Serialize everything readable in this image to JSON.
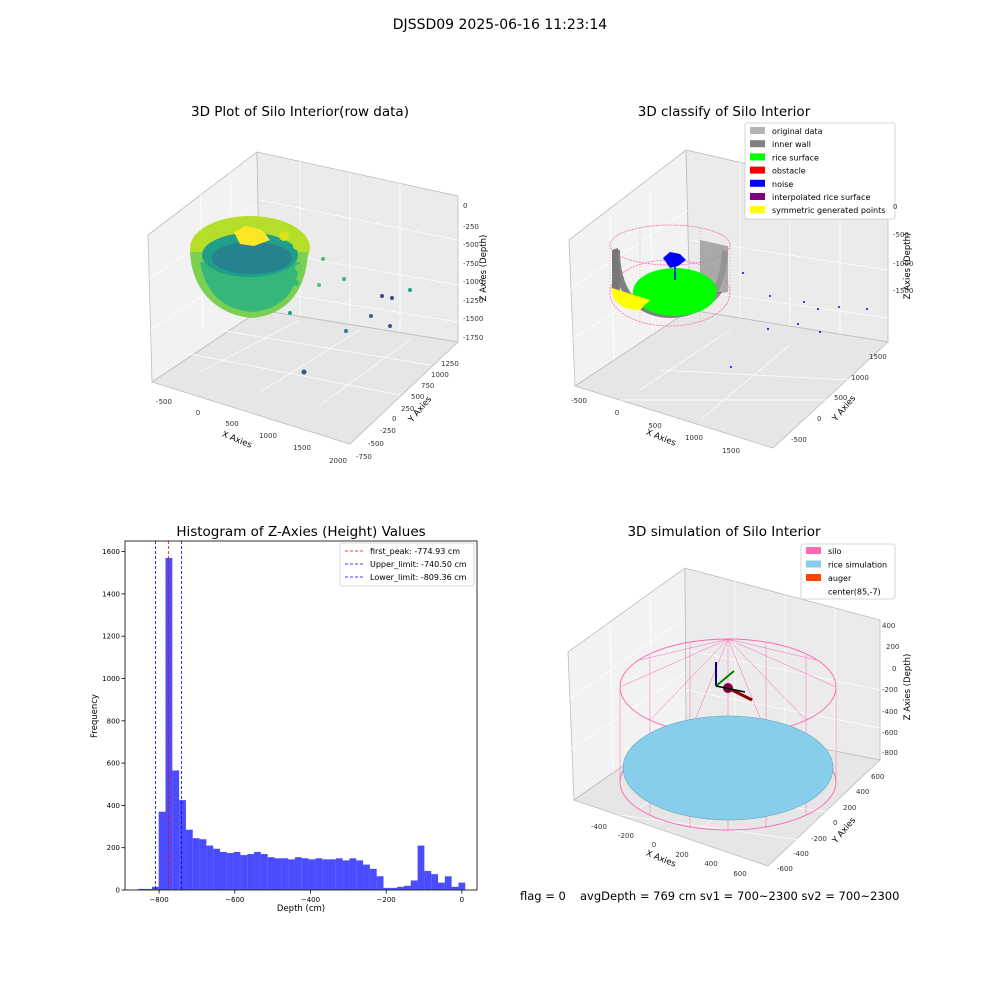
{
  "figure": {
    "suptitle": "DJSSD09 2025-06-16 11:23:14",
    "footer": {
      "flag": "flag = 0",
      "stats": "avgDepth = 769 cm  sv1 = 700~2300  sv2 = 700~2300"
    }
  },
  "panels": {
    "raw": {
      "title": "3D Plot of Silo Interior(row data)",
      "xlabel": "X Axies",
      "ylabel": "Y Axies",
      "zlabel": "Z Axies (Depth)",
      "xticks": [
        "-500",
        "0",
        "500",
        "1000",
        "1500",
        "2000"
      ],
      "yticks": [
        "-750",
        "-500",
        "-250",
        "0",
        "250",
        "500",
        "750",
        "1000",
        "1250"
      ],
      "zticks": [
        "0",
        "-250",
        "-500",
        "-750",
        "-1000",
        "-1250",
        "-1500",
        "-1750"
      ]
    },
    "classify": {
      "title": "3D classify of Silo Interior",
      "xlabel": "X Axies",
      "ylabel": "Y Axies",
      "zlabel": "Z Axies (Depth)",
      "xticks": [
        "-500",
        "0",
        "500",
        "1000",
        "1500"
      ],
      "yticks": [
        "-500",
        "0",
        "500",
        "1000",
        "1500"
      ],
      "zticks": [
        "0",
        "-500",
        "-1000",
        "-1500"
      ],
      "legend": [
        {
          "label": "original data",
          "color": "#b4b4b4"
        },
        {
          "label": "inner wall",
          "color": "#808080"
        },
        {
          "label": "rice surface",
          "color": "#00ff00"
        },
        {
          "label": "obstacle",
          "color": "#ff0000"
        },
        {
          "label": "noise",
          "color": "#0000ff"
        },
        {
          "label": "interpolated rice surface",
          "color": "#800080"
        },
        {
          "label": "symmetric generated points",
          "color": "#ffff00"
        }
      ]
    },
    "simulation": {
      "title": "3D simulation of Silo Interior",
      "xlabel": "X Axies",
      "ylabel": "Y Axies",
      "zlabel": "Z Axies (Depth)",
      "xticks": [
        "-400",
        "-200",
        "0",
        "200",
        "400",
        "600"
      ],
      "yticks": [
        "-600",
        "-400",
        "-200",
        "0",
        "200",
        "400",
        "600"
      ],
      "zticks": [
        "400",
        "200",
        "0",
        "-200",
        "-400",
        "-600",
        "-800"
      ],
      "legend": [
        {
          "label": "silo",
          "color": "#ff69b4"
        },
        {
          "label": "rice simulation",
          "color": "#87ceeb"
        },
        {
          "label": "auger",
          "color": "#ff4500"
        },
        {
          "label": "center(85,-7)",
          "color": "#ffffff"
        }
      ]
    }
  },
  "chart_data": [
    {
      "type": "histogram",
      "title": "Histogram of Z-Axies (Height) Values",
      "xlabel": "Depth (cm)",
      "ylabel": "Frequency",
      "xlim": [
        -890,
        40
      ],
      "ylim": [
        0,
        1650
      ],
      "xticks": [
        -800,
        -600,
        -400,
        -200,
        0
      ],
      "yticks": [
        0,
        200,
        400,
        600,
        800,
        1000,
        1200,
        1400,
        1600
      ],
      "bin_width": 18,
      "bins_start": [
        -855,
        -837,
        -819,
        -801,
        -783,
        -765,
        -747,
        -729,
        -711,
        -693,
        -675,
        -657,
        -639,
        -621,
        -603,
        -585,
        -567,
        -549,
        -531,
        -513,
        -495,
        -477,
        -459,
        -441,
        -423,
        -405,
        -387,
        -369,
        -351,
        -333,
        -315,
        -297,
        -279,
        -261,
        -243,
        -225,
        -207,
        -189,
        -171,
        -153,
        -135,
        -117,
        -99,
        -81,
        -63,
        -45,
        -27,
        -9
      ],
      "counts": [
        5,
        5,
        15,
        370,
        1570,
        565,
        425,
        285,
        245,
        240,
        210,
        195,
        180,
        175,
        180,
        165,
        170,
        180,
        170,
        155,
        150,
        150,
        145,
        155,
        150,
        145,
        150,
        145,
        145,
        150,
        140,
        150,
        140,
        120,
        100,
        65,
        10,
        10,
        15,
        20,
        45,
        210,
        90,
        75,
        35,
        65,
        15,
        35
      ],
      "series": [
        {
          "color": "#0000ff"
        }
      ],
      "vlines": [
        {
          "label": "first_peak: -774.93 cm",
          "x": -774.93,
          "color": "#ff0000"
        },
        {
          "label": "Upper_limit: -740.50 cm",
          "x": -740.5,
          "color": "#0000ff"
        },
        {
          "label": "Lower_limit: -809.36 cm",
          "x": -809.36,
          "color": "#0000ff"
        }
      ],
      "legend_position": "upper right"
    }
  ]
}
